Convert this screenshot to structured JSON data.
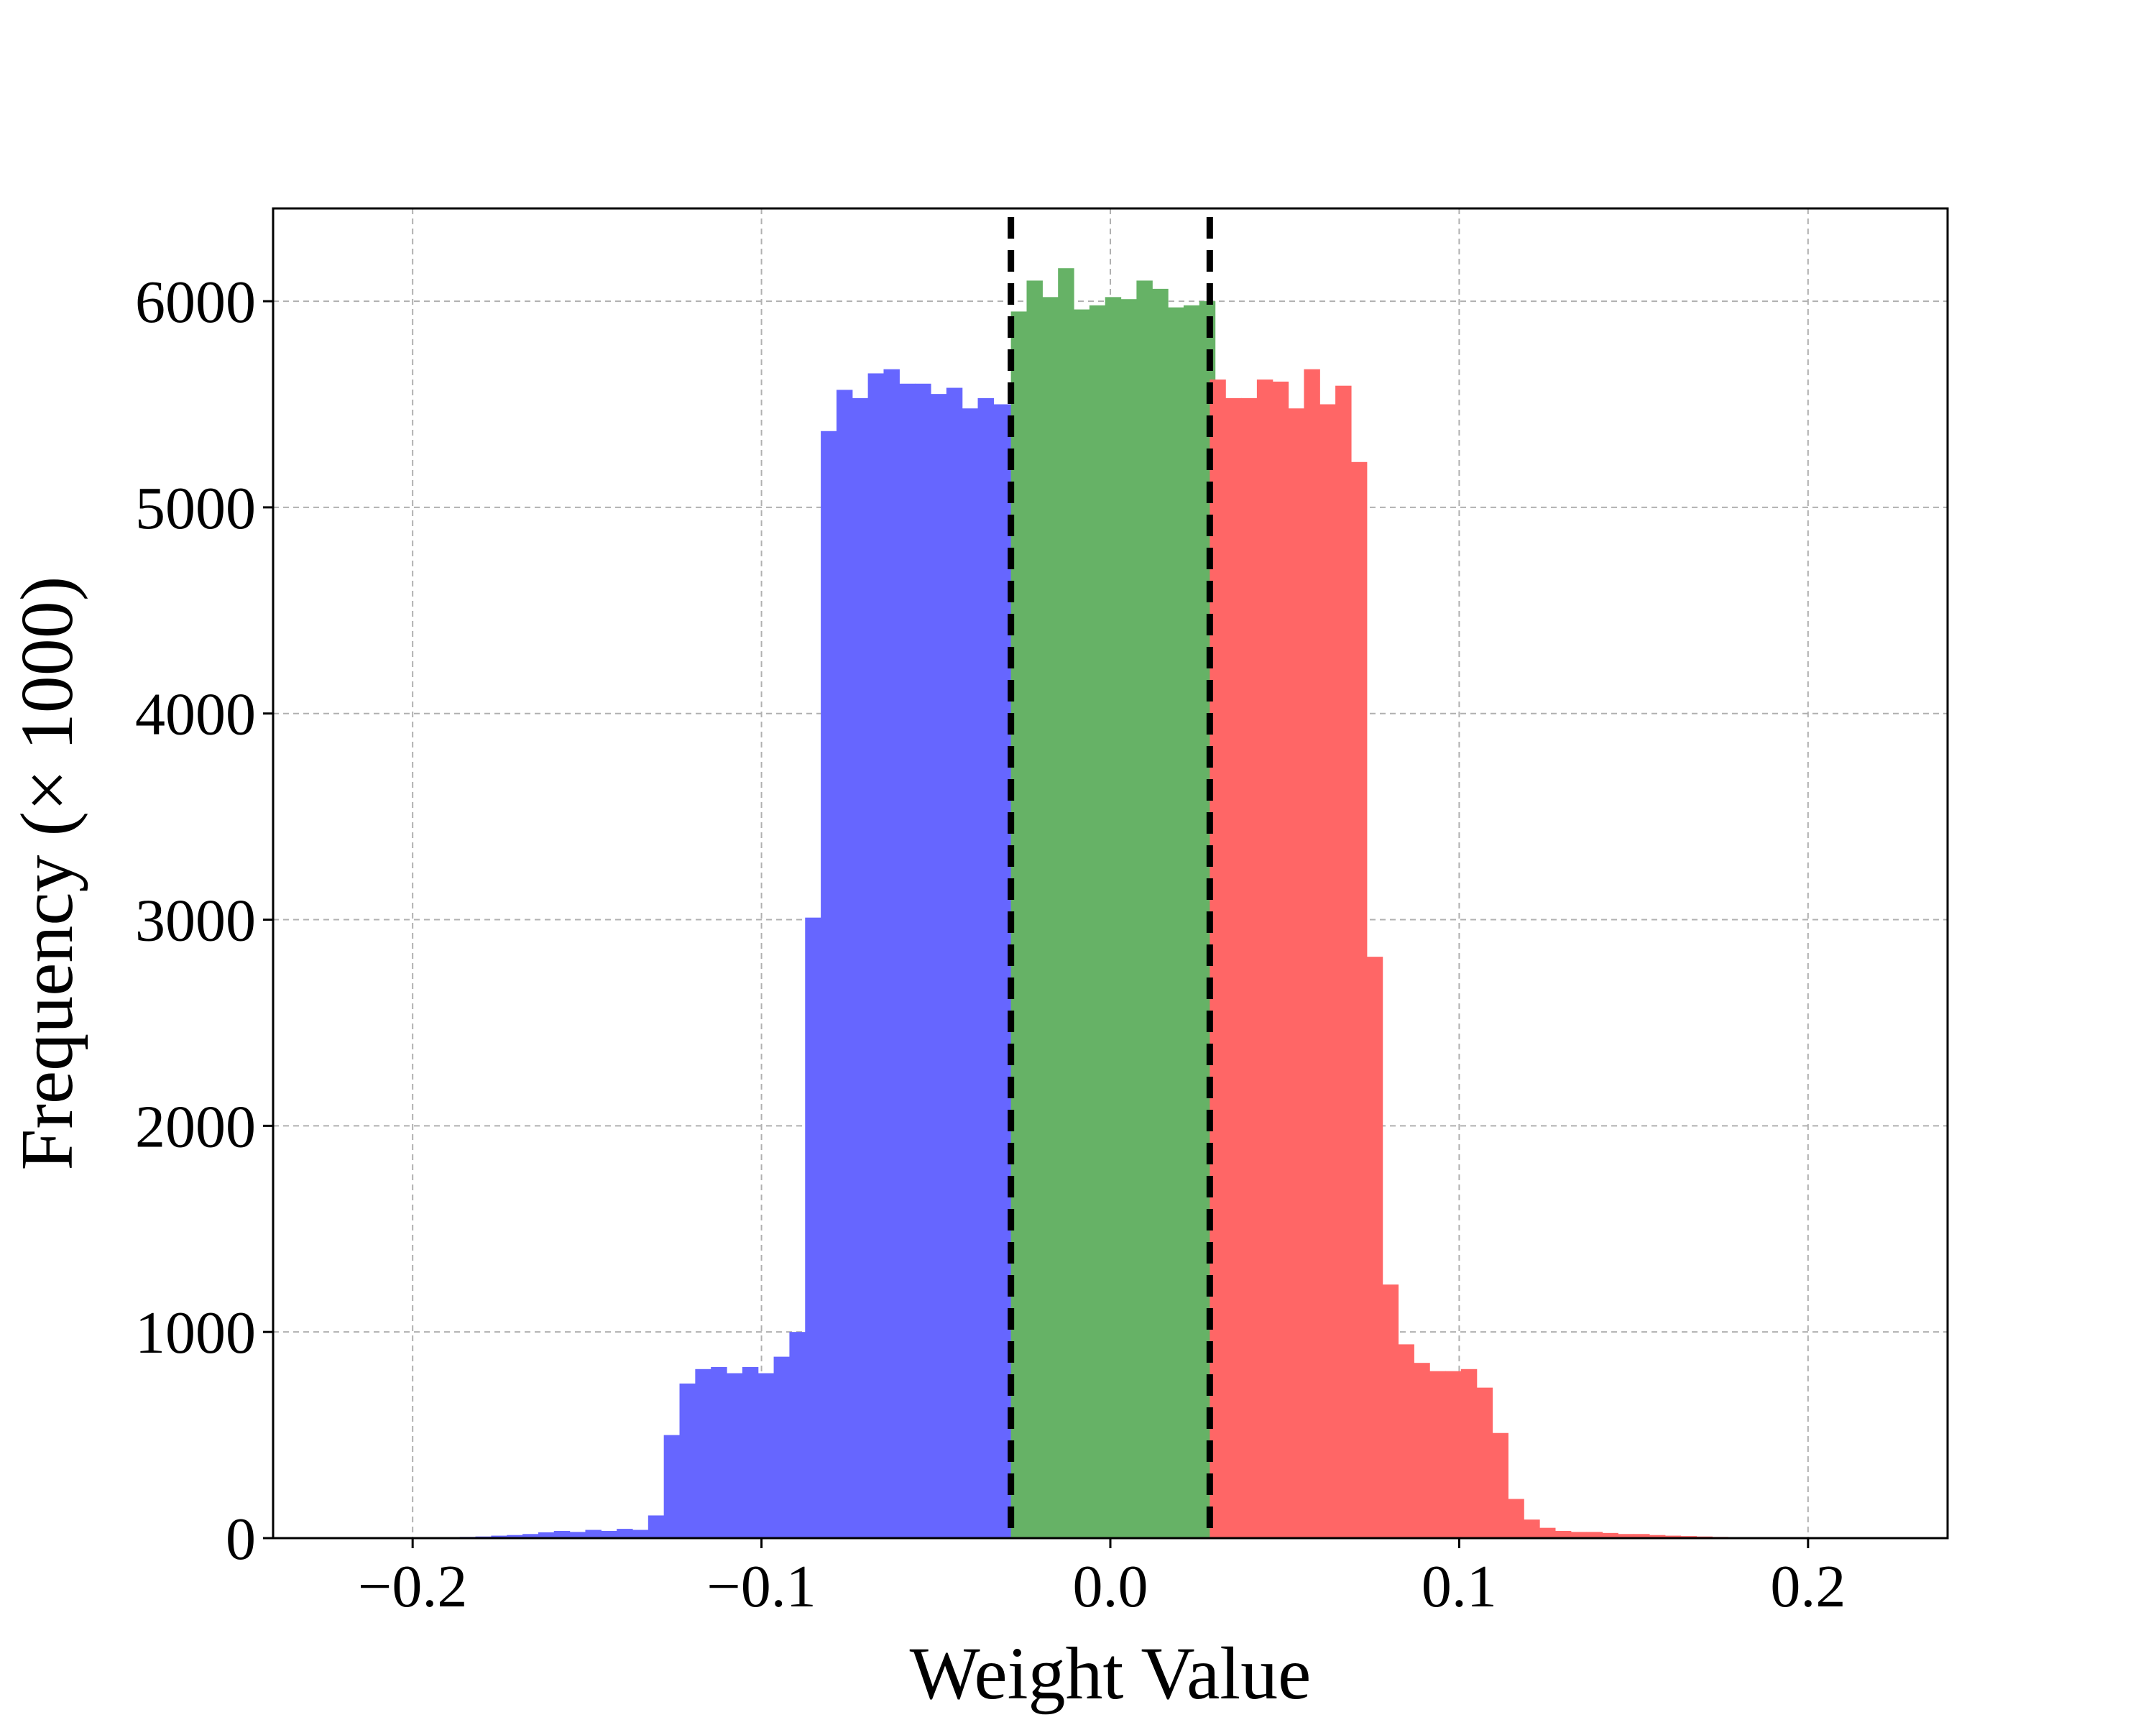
{
  "chart_data": {
    "type": "bar",
    "title": "",
    "xlabel": "Weight Value",
    "ylabel": "Frequency (× 1000)",
    "xlim": [
      -0.24,
      0.24
    ],
    "ylim": [
      0,
      6450
    ],
    "xticks": [
      -0.2,
      -0.1,
      0.0,
      0.1,
      0.2
    ],
    "xtick_labels": [
      "−0.2",
      "−0.1",
      "0.0",
      "0.1",
      "0.2"
    ],
    "yticks": [
      0,
      1000,
      2000,
      3000,
      4000,
      5000,
      6000
    ],
    "ytick_labels": [
      "0",
      "1000",
      "2000",
      "3000",
      "4000",
      "5000",
      "6000"
    ],
    "grid": true,
    "bin_start": -0.2,
    "bin_width": 0.0045,
    "thresholds": [
      -0.0285,
      0.0285
    ],
    "series": [
      {
        "color": "#6666ff",
        "bins": [
          [
            -0.2,
            3
          ],
          [
            -0.1955,
            4
          ],
          [
            -0.191,
            5
          ],
          [
            -0.1865,
            6
          ],
          [
            -0.182,
            8
          ],
          [
            -0.1775,
            12
          ],
          [
            -0.173,
            15
          ],
          [
            -0.1685,
            20
          ],
          [
            -0.164,
            28
          ],
          [
            -0.1595,
            35
          ],
          [
            -0.155,
            30
          ],
          [
            -0.1505,
            40
          ],
          [
            -0.146,
            35
          ],
          [
            -0.1415,
            45
          ],
          [
            -0.137,
            40
          ],
          [
            -0.1325,
            110
          ],
          [
            -0.128,
            500
          ],
          [
            -0.1235,
            750
          ],
          [
            -0.119,
            820
          ],
          [
            -0.1145,
            830
          ],
          [
            -0.11,
            800
          ],
          [
            -0.1055,
            830
          ],
          [
            -0.101,
            800
          ],
          [
            -0.0965,
            880
          ],
          [
            -0.092,
            1000
          ],
          [
            -0.0875,
            3010
          ],
          [
            -0.083,
            5370
          ],
          [
            -0.0785,
            5570
          ],
          [
            -0.074,
            5530
          ],
          [
            -0.0695,
            5650
          ],
          [
            -0.065,
            5670
          ],
          [
            -0.0605,
            5600
          ],
          [
            -0.056,
            5600
          ],
          [
            -0.0515,
            5550
          ],
          [
            -0.047,
            5580
          ],
          [
            -0.0425,
            5480
          ],
          [
            -0.038,
            5530
          ],
          [
            -0.0335,
            5500
          ],
          [
            -0.029,
            5500
          ]
        ]
      },
      {
        "color": "#66b266",
        "bins": [
          [
            -0.0285,
            5950
          ],
          [
            -0.024,
            6100
          ],
          [
            -0.0195,
            6020
          ],
          [
            -0.015,
            6160
          ],
          [
            -0.0105,
            5960
          ],
          [
            -0.006,
            5980
          ],
          [
            -0.0015,
            6020
          ],
          [
            0.003,
            6010
          ],
          [
            0.0075,
            6100
          ],
          [
            0.012,
            6060
          ],
          [
            0.0165,
            5970
          ],
          [
            0.021,
            5980
          ],
          [
            0.0255,
            6000
          ]
        ]
      },
      {
        "color": "#ff6666",
        "bins": [
          [
            0.0285,
            5620
          ],
          [
            0.033,
            5530
          ],
          [
            0.0375,
            5530
          ],
          [
            0.042,
            5620
          ],
          [
            0.0465,
            5610
          ],
          [
            0.051,
            5480
          ],
          [
            0.0555,
            5670
          ],
          [
            0.06,
            5500
          ],
          [
            0.0645,
            5590
          ],
          [
            0.069,
            5220
          ],
          [
            0.0735,
            2820
          ],
          [
            0.078,
            1230
          ],
          [
            0.0825,
            940
          ],
          [
            0.087,
            850
          ],
          [
            0.0915,
            810
          ],
          [
            0.096,
            810
          ],
          [
            0.1005,
            820
          ],
          [
            0.105,
            730
          ],
          [
            0.1095,
            510
          ],
          [
            0.114,
            190
          ],
          [
            0.1185,
            90
          ],
          [
            0.123,
            50
          ],
          [
            0.1275,
            35
          ],
          [
            0.132,
            30
          ],
          [
            0.1365,
            30
          ],
          [
            0.141,
            25
          ],
          [
            0.1455,
            20
          ],
          [
            0.15,
            20
          ],
          [
            0.1545,
            15
          ],
          [
            0.159,
            12
          ],
          [
            0.1635,
            10
          ],
          [
            0.168,
            8
          ],
          [
            0.1725,
            6
          ],
          [
            0.177,
            5
          ],
          [
            0.1815,
            4
          ],
          [
            0.186,
            3
          ],
          [
            0.1905,
            3
          ],
          [
            0.195,
            2
          ]
        ]
      }
    ]
  }
}
